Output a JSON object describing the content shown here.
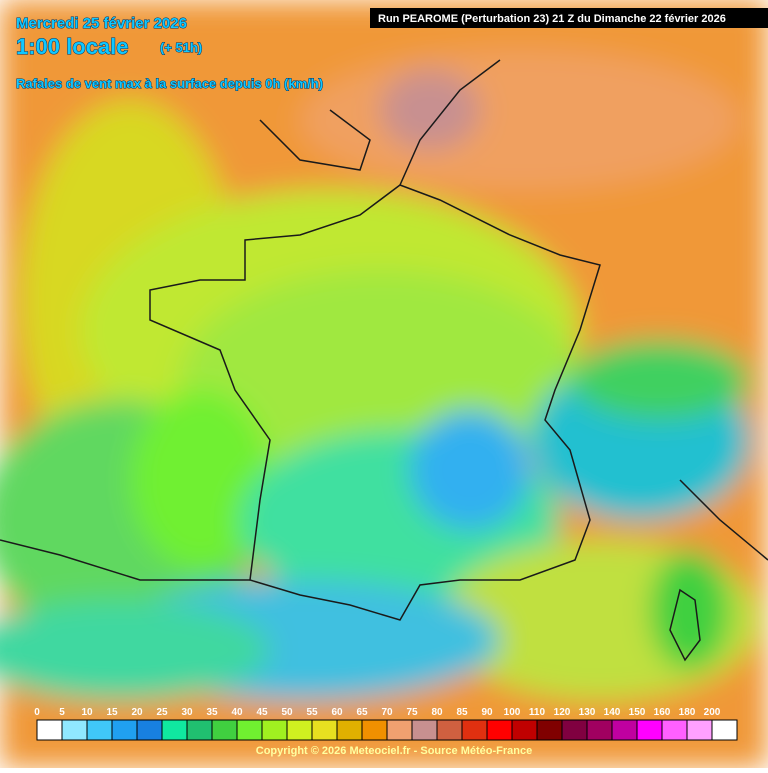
{
  "header": {
    "date": "Mercredi 25 février 2026",
    "time": "1:00 locale",
    "lead": "(+ 51h)",
    "subtitle": "Rafales de vent max à la surface depuis 0h (km/h)",
    "run": "Run PEAROME (Perturbation 23) 21 Z du Dimanche 22 février 2026"
  },
  "legend": {
    "labels": [
      0,
      5,
      10,
      15,
      20,
      25,
      30,
      35,
      40,
      45,
      50,
      55,
      60,
      65,
      70,
      75,
      80,
      85,
      90,
      100,
      110,
      120,
      130,
      140,
      150,
      160,
      180,
      200
    ],
    "colors": [
      "#ffffff",
      "#90e8ff",
      "#40c8f8",
      "#20a0f0",
      "#1880e0",
      "#10e8a0",
      "#20c070",
      "#40d040",
      "#70f030",
      "#a0f020",
      "#d0f020",
      "#e8e020",
      "#e0b000",
      "#f09000",
      "#f0a070",
      "#c89090",
      "#d06040",
      "#e03010",
      "#ff0000",
      "#c00000",
      "#800000",
      "#800040",
      "#a00060",
      "#c000a0",
      "#ff00ff",
      "#ff60ff",
      "#ffa0ff",
      "#ffffff"
    ]
  },
  "footer": {
    "copyright": "Copyright © 2026 Meteociel.fr - Source Météo-France"
  }
}
